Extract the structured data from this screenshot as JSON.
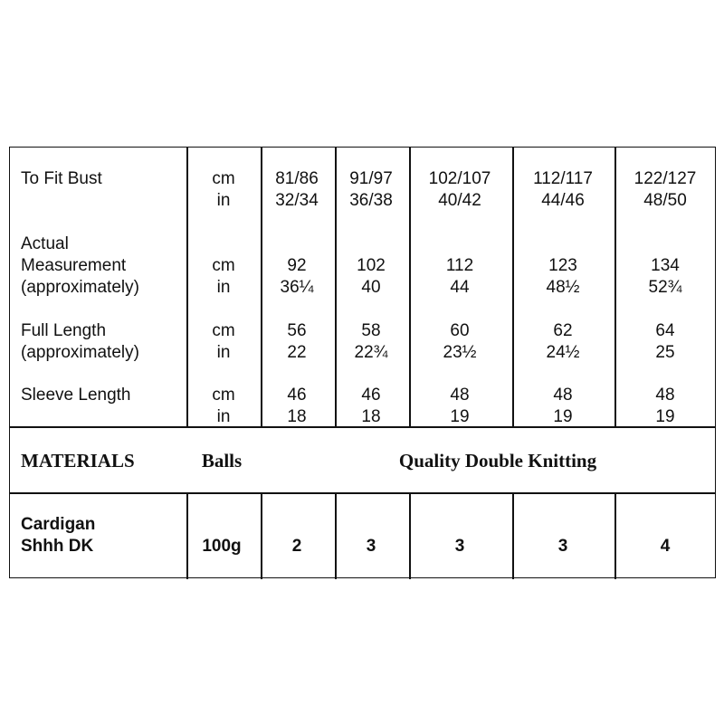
{
  "size_rows": [
    {
      "label": [
        "To Fit Bust"
      ],
      "cm": [
        "81/86",
        "91/97",
        "102/107",
        "112/117",
        "122/127"
      ],
      "in": [
        "32/34",
        "36/38",
        "40/42",
        "44/46",
        "48/50"
      ]
    },
    {
      "label": [
        "Actual",
        "Measurement",
        "(approximately)"
      ],
      "cm": [
        "92",
        "102",
        "112",
        "123",
        "134"
      ],
      "in": [
        "36¼",
        "40",
        "44",
        "48½",
        "52¾"
      ]
    },
    {
      "label": [
        "Full Length",
        "(approximately)"
      ],
      "cm": [
        "56",
        "58",
        "60",
        "62",
        "64"
      ],
      "in": [
        "22",
        "22¾",
        "23½",
        "24½",
        "25"
      ]
    },
    {
      "label": [
        "Sleeve Length"
      ],
      "cm": [
        "46",
        "46",
        "48",
        "48",
        "48"
      ],
      "in": [
        "18",
        "18",
        "19",
        "19",
        "19"
      ]
    }
  ],
  "units": {
    "cm": "cm",
    "in": "in"
  },
  "materials": {
    "heading": "MATERIALS",
    "balls": "Balls",
    "quality": "Quality  Double Knitting"
  },
  "yarn": {
    "label": [
      "Cardigan",
      "Shhh DK"
    ],
    "weight": "100g",
    "counts": [
      "2",
      "3",
      "3",
      "3",
      "4"
    ]
  }
}
